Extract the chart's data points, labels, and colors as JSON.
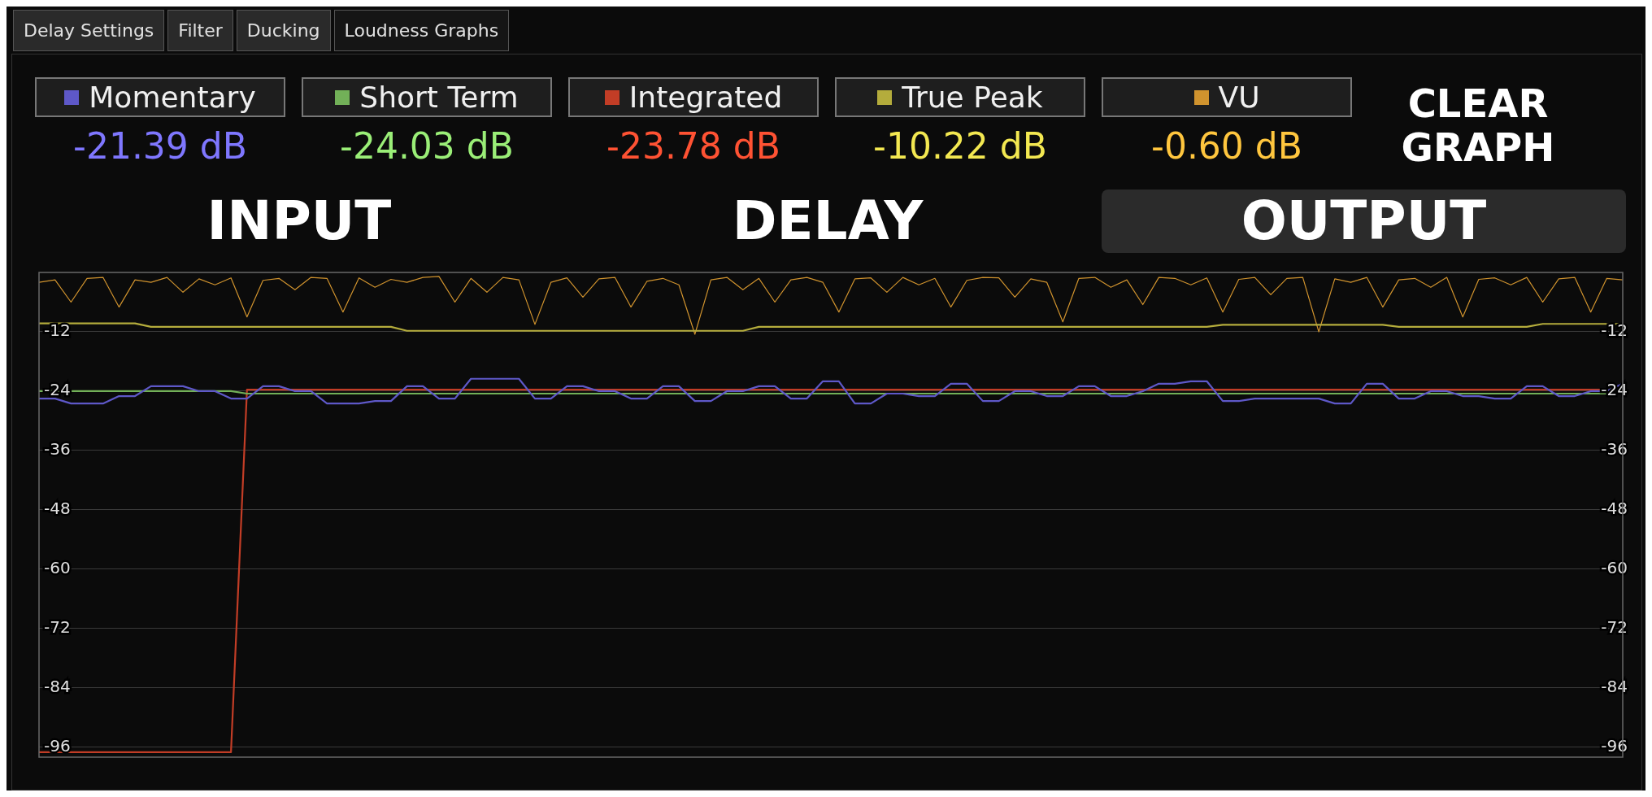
{
  "chart_data": {
    "type": "line",
    "categories": [
      null,
      null,
      null,
      null,
      null,
      null,
      null,
      null,
      null,
      null,
      null,
      null,
      null,
      null,
      null,
      null,
      null,
      null,
      null,
      null,
      null,
      null,
      null,
      null,
      null,
      null,
      null,
      null,
      null,
      null,
      null,
      null,
      null,
      null,
      null,
      null,
      null,
      null,
      null,
      null,
      null,
      null,
      null,
      null,
      null,
      null,
      null,
      null,
      null,
      null,
      null,
      null,
      null,
      null,
      null,
      null,
      null,
      null,
      null,
      null,
      null,
      null,
      null,
      null,
      null,
      null,
      null,
      null,
      null,
      null,
      null,
      null,
      null,
      null,
      null,
      null,
      null,
      null,
      null,
      null,
      null,
      null,
      null,
      null,
      null,
      null,
      null,
      null,
      null,
      null,
      null,
      null,
      null,
      null,
      null,
      null,
      null,
      null,
      null,
      null
    ],
    "ylim": [
      -98,
      0
    ],
    "yticks": [
      -12,
      -24,
      -36,
      -48,
      -60,
      -72,
      -84,
      -96
    ],
    "y2lim": [
      -98,
      0
    ],
    "y2ticks": [
      -12,
      -24,
      -36,
      -48,
      -60,
      -72,
      -84,
      -96
    ],
    "grid": "y",
    "legend": "top",
    "annotations": [
      "Delay Settings",
      "Filter",
      "Ducking",
      "Loudness Graphs",
      "-21.39 dB",
      "-24.03 dB",
      "-23.78 dB",
      "-10.22 dB",
      "-0.60 dB",
      "CLEAR GRAPH",
      "INPUT",
      "DELAY",
      "OUTPUT"
    ],
    "series": [
      {
        "name": "Momentary",
        "color": "#5e58c8",
        "values": [
          -25.5,
          -25.5,
          -26.5,
          -26.5,
          -26.5,
          -25,
          -25,
          -23,
          -23,
          -23,
          -24,
          -24,
          -25.5,
          -25.5,
          -23,
          -23,
          -24,
          -24,
          -26.5,
          -26.5,
          -26.5,
          -26,
          -26,
          -23,
          -23,
          -25.5,
          -25.5,
          -21.5,
          -21.5,
          -21.5,
          -21.5,
          -25.5,
          -25.5,
          -23,
          -23,
          -24,
          -24,
          -25.5,
          -25.5,
          -23,
          -23,
          -26,
          -26,
          -24,
          -24,
          -23,
          -23,
          -25.5,
          -25.5,
          -22,
          -22,
          -26.5,
          -26.5,
          -24.5,
          -24.5,
          -25,
          -25,
          -22.5,
          -22.5,
          -26,
          -26,
          -24,
          -24,
          -25,
          -25,
          -23,
          -23,
          -25,
          -25,
          -24,
          -22.5,
          -22.5,
          -22,
          -22,
          -26,
          -26,
          -25.5,
          -25.5,
          -25.5,
          -25.5,
          -25.5,
          -26.5,
          -26.5,
          -22.5,
          -22.5,
          -25.5,
          -25.5,
          -24,
          -24,
          -25,
          -25,
          -25.5,
          -25.5,
          -23,
          -23,
          -25,
          -25,
          -24,
          -24,
          -22.5
        ]
      },
      {
        "name": "Short Term",
        "color": "#72b058",
        "values": [
          -24,
          -24,
          -24,
          -24,
          -24,
          -24,
          -24,
          -24,
          -24,
          -24,
          -24,
          -24,
          -24,
          -24.5,
          -24.5,
          -24.5,
          -24.5,
          -24.5,
          -24.5,
          -24.5,
          -24.5,
          -24.5,
          -24.5,
          -24.5,
          -24.5,
          -24.5,
          -24.5,
          -24.5,
          -24.5,
          -24.5,
          -24.5,
          -24.5,
          -24.5,
          -24.5,
          -24.5,
          -24.5,
          -24.5,
          -24.5,
          -24.5,
          -24.5,
          -24.5,
          -24.5,
          -24.5,
          -24.5,
          -24.5,
          -24.5,
          -24.5,
          -24.5,
          -24.5,
          -24.5,
          -24.5,
          -24.5,
          -24.5,
          -24.5,
          -24.5,
          -24.5,
          -24.5,
          -24.5,
          -24.5,
          -24.5,
          -24.5,
          -24.5,
          -24.5,
          -24.5,
          -24.5,
          -24.5,
          -24.5,
          -24.5,
          -24.5,
          -24.5,
          -24.5,
          -24.5,
          -24.5,
          -24.5,
          -24.5,
          -24.5,
          -24.5,
          -24.5,
          -24.5,
          -24.5,
          -24.5,
          -24.5,
          -24.5,
          -24.5,
          -24.5,
          -24.5,
          -24.5,
          -24.5,
          -24.5,
          -24.5,
          -24.5,
          -24.5,
          -24.5,
          -24.5,
          -24.5,
          -24.5,
          -24.5,
          -24.5,
          -24.5,
          -24.5
        ]
      },
      {
        "name": "Integrated",
        "color": "#c23d26",
        "values": [
          -97,
          -97,
          -97,
          -97,
          -97,
          -97,
          -97,
          -97,
          -97,
          -97,
          -97,
          -97,
          -97,
          -23.7,
          -23.7,
          -23.7,
          -23.7,
          -23.7,
          -23.7,
          -23.7,
          -23.7,
          -23.7,
          -23.7,
          -23.7,
          -23.7,
          -23.7,
          -23.7,
          -23.7,
          -23.7,
          -23.7,
          -23.7,
          -23.7,
          -23.7,
          -23.7,
          -23.7,
          -23.7,
          -23.7,
          -23.7,
          -23.7,
          -23.7,
          -23.7,
          -23.7,
          -23.7,
          -23.7,
          -23.7,
          -23.7,
          -23.7,
          -23.7,
          -23.7,
          -23.7,
          -23.7,
          -23.7,
          -23.7,
          -23.7,
          -23.7,
          -23.7,
          -23.7,
          -23.7,
          -23.7,
          -23.7,
          -23.7,
          -23.7,
          -23.7,
          -23.7,
          -23.7,
          -23.7,
          -23.7,
          -23.7,
          -23.7,
          -23.7,
          -23.7,
          -23.7,
          -23.7,
          -23.7,
          -23.7,
          -23.7,
          -23.7,
          -23.7,
          -23.7,
          -23.7,
          -23.7,
          -23.7,
          -23.7,
          -23.7,
          -23.7,
          -23.7,
          -23.7,
          -23.7,
          -23.7,
          -23.7,
          -23.7,
          -23.7,
          -23.7,
          -23.7,
          -23.7,
          -23.7,
          -23.7,
          -23.7,
          -23.7,
          null
        ]
      },
      {
        "name": "True Peak",
        "color": "#b4ac3c",
        "values": [
          -10.3,
          -10.3,
          -10.3,
          -10.3,
          -10.3,
          -10.3,
          -10.3,
          -11,
          -11,
          -11,
          -11,
          -11,
          -11,
          -11,
          -11,
          -11,
          -11,
          -11,
          -11,
          -11,
          -11,
          -11,
          -11,
          -11.8,
          -11.8,
          -11.8,
          -11.8,
          -11.8,
          -11.8,
          -11.8,
          -11.8,
          -11.8,
          -11.8,
          -11.8,
          -11.8,
          -11.8,
          -11.8,
          -11.8,
          -11.8,
          -11.8,
          -11.8,
          -11.8,
          -11.8,
          -11.8,
          -11.8,
          -11,
          -11,
          -11,
          -11,
          -11,
          -11,
          -11,
          -11,
          -11,
          -11,
          -11,
          -11,
          -11,
          -11,
          -11,
          -11,
          -11,
          -11,
          -11,
          -11,
          -11,
          -11,
          -11,
          -11,
          -11,
          -11,
          -11,
          -11,
          -11,
          -10.6,
          -10.6,
          -10.6,
          -10.6,
          -10.6,
          -10.6,
          -10.6,
          -10.6,
          -10.6,
          -10.6,
          -10.6,
          -11,
          -11,
          -11,
          -11,
          -11,
          -11,
          -11,
          -11,
          -11,
          -10.4,
          -10.4,
          -10.4,
          -10.4,
          -10.4,
          -10.4
        ]
      },
      {
        "name": "VU",
        "color": "#d0932e",
        "values": [
          -2,
          -1.5,
          -6,
          -1.2,
          -1,
          -7,
          -1.5,
          -2,
          -1,
          -4,
          -1.3,
          -2.5,
          -1.1,
          -9,
          -1.6,
          -1.2,
          -3.5,
          -1,
          -1.2,
          -8,
          -1.1,
          -3,
          -1.4,
          -2,
          -1,
          -0.8,
          -6,
          -1.2,
          -4,
          -1,
          -1.5,
          -10.5,
          -2,
          -1.1,
          -5,
          -1.3,
          -1,
          -7,
          -1.8,
          -1.2,
          -2.5,
          -12.5,
          -1.5,
          -1,
          -3.5,
          -1.2,
          -6,
          -1.5,
          -1,
          -2,
          -8,
          -1.3,
          -1.1,
          -4,
          -1,
          -2.5,
          -1.2,
          -7,
          -1.6,
          -1,
          -1.1,
          -5,
          -1.3,
          -2,
          -10,
          -1.2,
          -1,
          -3,
          -1.5,
          -6.5,
          -1,
          -1.2,
          -2.5,
          -1.1,
          -8,
          -1.4,
          -1,
          -4.5,
          -1.2,
          -1,
          -12,
          -1.3,
          -2,
          -1,
          -7,
          -1.5,
          -1.2,
          -3,
          -1,
          -9,
          -1.4,
          -1.1,
          -2.5,
          -1,
          -6,
          -1.3,
          -1,
          -8,
          -1.2,
          -1.5
        ]
      }
    ]
  }
}
